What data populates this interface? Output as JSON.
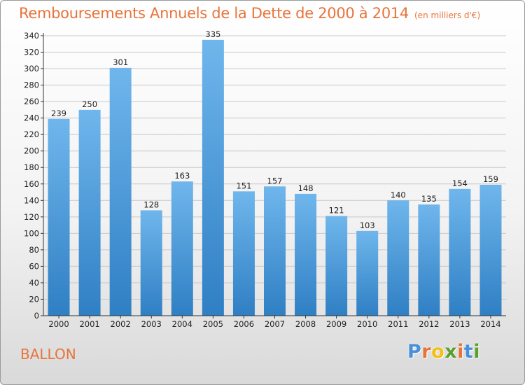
{
  "title": "Remboursements Annuels de la Dette de 2000 à 2014",
  "subtitle": "(en milliers d'€)",
  "commune": "BALLON",
  "logo": {
    "letters": [
      "P",
      "r",
      "o",
      "x",
      "i",
      "t",
      "i"
    ],
    "colors": [
      "#4a90d9",
      "#e8733a",
      "#f2c018",
      "#5aa02c",
      "#e8733a",
      "#4a90d9",
      "#5aa02c"
    ]
  },
  "colors": {
    "bar_light": "#6fb6ec",
    "bar_dark": "#2f7fc4",
    "axis": "#333333",
    "grid": "#c8c8c8"
  },
  "chart_data": {
    "type": "bar",
    "categories": [
      "2000",
      "2001",
      "2002",
      "2003",
      "2004",
      "2005",
      "2006",
      "2007",
      "2008",
      "2009",
      "2010",
      "2011",
      "2012",
      "2013",
      "2014"
    ],
    "values": [
      239,
      250,
      301,
      128,
      163,
      335,
      151,
      157,
      148,
      121,
      103,
      140,
      135,
      154,
      159
    ],
    "title": "Remboursements Annuels de la Dette de 2000 à 2014",
    "xlabel": "",
    "ylabel": "",
    "ylim": [
      0,
      340
    ],
    "yticks": [
      0,
      20,
      40,
      60,
      80,
      100,
      120,
      140,
      160,
      180,
      200,
      220,
      240,
      260,
      280,
      300,
      320,
      340
    ],
    "grid": true,
    "legend": "none"
  }
}
